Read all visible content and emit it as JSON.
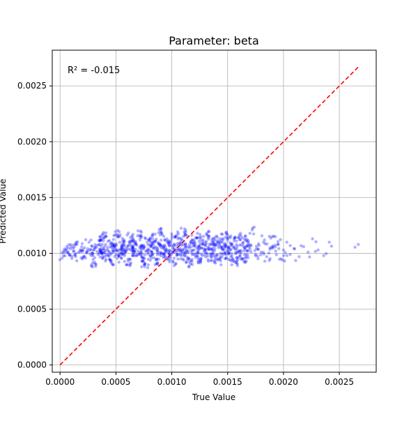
{
  "chart_data": {
    "type": "scatter",
    "title": "Parameter: beta",
    "xlabel": "True Value",
    "ylabel": "Predicted Value",
    "annotation": "R² = -0.015",
    "xlim": [
      -7e-05,
      0.00283
    ],
    "ylim": [
      -6.5e-05,
      0.00282
    ],
    "xticks": [
      0.0,
      0.0005,
      0.001,
      0.0015,
      0.002,
      0.0025
    ],
    "xtick_labels": [
      "0.0000",
      "0.0005",
      "0.0010",
      "0.0015",
      "0.0020",
      "0.0025"
    ],
    "yticks": [
      0.0,
      0.0005,
      0.001,
      0.0015,
      0.002,
      0.0025
    ],
    "ytick_labels": [
      "0.0000",
      "0.0005",
      "0.0010",
      "0.0015",
      "0.0020",
      "0.0025"
    ],
    "grid": true,
    "point_color": "#0000ff",
    "reference_line": {
      "x": [
        0.0,
        0.00267
      ],
      "y": [
        0.0,
        0.00267
      ],
      "color": "#ff0000",
      "style": "dashed"
    },
    "series": [
      {
        "points": [
          [
            3e-05,
            0.00098
          ],
          [
            4e-05,
            0.00104
          ],
          [
            6e-05,
            0.00101
          ],
          [
            8e-05,
            0.00099
          ],
          [
            0.0001,
            0.00106
          ],
          [
            0.00012,
            0.00102
          ],
          [
            0.00014,
            0.00097
          ],
          [
            0.00015,
            0.00108
          ],
          [
            0.00018,
            0.00103
          ],
          [
            0.0002,
            0.00095
          ],
          [
            0.00022,
            0.00105
          ],
          [
            0.00024,
            0.00101
          ],
          [
            0.00026,
            0.0011
          ],
          [
            0.00028,
            0.00098
          ],
          [
            0.0003,
            0.00103
          ],
          [
            0.00031,
            0.00092
          ],
          [
            0.00033,
            0.00107
          ],
          [
            0.00035,
            0.001
          ],
          [
            0.00036,
            0.00112
          ],
          [
            0.00038,
            0.00104
          ],
          [
            0.0004,
            0.00097
          ],
          [
            0.00041,
            0.00115
          ],
          [
            0.00043,
            0.00102
          ],
          [
            0.00045,
            0.00094
          ],
          [
            0.00046,
            0.00109
          ],
          [
            0.00048,
            0.00105
          ],
          [
            0.0005,
            0.00099
          ],
          [
            0.00051,
            0.00117
          ],
          [
            0.00053,
            0.00103
          ],
          [
            0.00055,
            0.00096
          ],
          [
            0.00056,
            0.00111
          ],
          [
            0.00058,
            0.00101
          ],
          [
            0.0006,
            0.00106
          ],
          [
            0.00061,
            0.00093
          ],
          [
            0.00063,
            0.00114
          ],
          [
            0.00065,
            0.00104
          ],
          [
            0.00066,
            0.00099
          ],
          [
            0.00068,
            0.00108
          ],
          [
            0.0007,
            0.00102
          ],
          [
            0.00071,
            0.00116
          ],
          [
            0.00073,
            0.00097
          ],
          [
            0.00075,
            0.00105
          ],
          [
            0.00076,
            0.00091
          ],
          [
            0.00078,
            0.0011
          ],
          [
            0.0008,
            0.00103
          ],
          [
            0.00081,
            0.00098
          ],
          [
            0.00083,
            0.00113
          ],
          [
            0.00085,
            0.00106
          ],
          [
            0.00086,
            0.00094
          ],
          [
            0.00088,
            0.00109
          ],
          [
            0.0009,
            0.00101
          ],
          [
            0.00091,
            0.00118
          ],
          [
            0.00093,
            0.00104
          ],
          [
            0.00095,
            0.00096
          ],
          [
            0.00096,
            0.00111
          ],
          [
            0.00098,
            0.00102
          ],
          [
            0.001,
            0.00107
          ],
          [
            0.00101,
            0.00093
          ],
          [
            0.00103,
            0.00115
          ],
          [
            0.00105,
            0.00104
          ],
          [
            0.00106,
            0.00099
          ],
          [
            0.00108,
            0.0011
          ],
          [
            0.0011,
            0.00102
          ],
          [
            0.00111,
            0.00119
          ],
          [
            0.00113,
            0.00097
          ],
          [
            0.00115,
            0.00106
          ],
          [
            0.00116,
            0.00092
          ],
          [
            0.00118,
            0.00112
          ],
          [
            0.0012,
            0.00103
          ],
          [
            0.00121,
            0.00098
          ],
          [
            0.00123,
            0.00114
          ],
          [
            0.00125,
            0.00105
          ],
          [
            0.00126,
            0.00095
          ],
          [
            0.00128,
            0.00108
          ],
          [
            0.0013,
            0.00101
          ],
          [
            0.00131,
            0.00117
          ],
          [
            0.00133,
            0.00104
          ],
          [
            0.00135,
            0.00097
          ],
          [
            0.00136,
            0.00111
          ],
          [
            0.00138,
            0.00102
          ],
          [
            0.0014,
            0.00107
          ],
          [
            0.00141,
            0.00094
          ],
          [
            0.00143,
            0.00113
          ],
          [
            0.00145,
            0.00104
          ],
          [
            0.00146,
            0.00099
          ],
          [
            0.00148,
            0.00109
          ],
          [
            0.0015,
            0.00103
          ],
          [
            0.00151,
            0.00115
          ],
          [
            0.00153,
            0.00097
          ],
          [
            0.00155,
            0.00106
          ],
          [
            0.00156,
            0.00093
          ],
          [
            0.00158,
            0.00111
          ],
          [
            0.0016,
            0.00102
          ],
          [
            0.00161,
            0.00098
          ],
          [
            0.00163,
            0.00114
          ],
          [
            0.00165,
            0.00105
          ],
          [
            0.00166,
            0.00096
          ],
          [
            0.00168,
            0.0011
          ],
          [
            0.0017,
            0.00104
          ],
          [
            0.00172,
            0.00121
          ],
          [
            0.00175,
            0.00099
          ],
          [
            0.00178,
            0.00107
          ],
          [
            0.0018,
            0.00101
          ],
          [
            0.00183,
            0.00112
          ],
          [
            0.00185,
            0.00097
          ],
          [
            0.00188,
            0.00105
          ],
          [
            0.0019,
            0.00115
          ],
          [
            0.00193,
            0.00102
          ],
          [
            0.00195,
            0.00108
          ],
          [
            0.00198,
            0.00095
          ],
          [
            0.002,
            0.00103
          ],
          [
            0.00203,
            0.0011
          ],
          [
            0.00206,
            0.00099
          ],
          [
            0.0021,
            0.00104
          ],
          [
            0.00214,
            0.00097
          ],
          [
            0.00218,
            0.00106
          ],
          [
            0.00222,
            0.00101
          ],
          [
            0.00226,
            0.00113
          ],
          [
            0.00231,
            0.00103
          ],
          [
            0.00236,
            0.00098
          ],
          [
            0.00241,
            0.0011
          ],
          [
            0.00267,
            0.00108
          ]
        ]
      }
    ]
  }
}
